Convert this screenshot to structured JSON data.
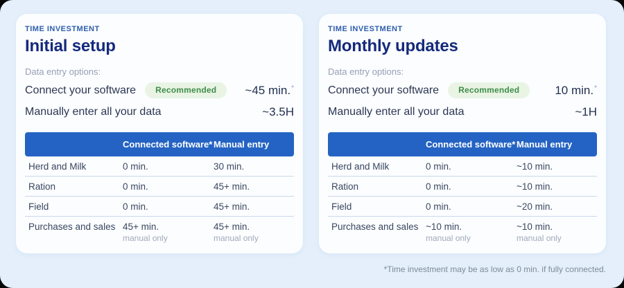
{
  "theme": {
    "page_bg": "#e4effb",
    "card_bg": "#fbfdff",
    "accent_blue": "#2463c3",
    "title_navy": "#15297b",
    "eyebrow_blue": "#2f5dab",
    "badge_green_bg": "#e9f4e4",
    "badge_green_text": "#3f8c4a"
  },
  "footnote": "*Time investment may be as low as 0 min. if fully connected.",
  "cards": [
    {
      "eyebrow": "TIME INVESTMENT",
      "title": "Initial setup",
      "options_label": "Data entry options:",
      "options": [
        {
          "label": "Connect your software",
          "badge": "Recommended",
          "value": "~45 min.",
          "value_suffix": "*"
        },
        {
          "label": "Manually enter all your data",
          "value": "~3.5H"
        }
      ],
      "table": {
        "headers": [
          "",
          "Connected software*",
          "Manual entry"
        ],
        "rows": [
          {
            "label": "Herd and Milk",
            "connected": "0 min.",
            "manual": "30 min."
          },
          {
            "label": "Ration",
            "connected": "0 min.",
            "manual": "45+ min."
          },
          {
            "label": "Field",
            "connected": "0 min.",
            "manual": "45+ min."
          },
          {
            "label": "Purchases and sales",
            "connected": "45+ min.",
            "connected_note": "manual only",
            "manual": "45+ min.",
            "manual_note": "manual only"
          }
        ]
      }
    },
    {
      "eyebrow": "TIME INVESTMENT",
      "title": "Monthly updates",
      "options_label": "Data entry options:",
      "options": [
        {
          "label": "Connect your software",
          "badge": "Recommended",
          "value": "10 min.",
          "value_suffix": "*"
        },
        {
          "label": "Manually enter all your data",
          "value": "~1H"
        }
      ],
      "table": {
        "headers": [
          "",
          "Connected software*",
          "Manual entry"
        ],
        "rows": [
          {
            "label": "Herd and Milk",
            "connected": "0 min.",
            "manual": "~10 min."
          },
          {
            "label": "Ration",
            "connected": "0 min.",
            "manual": "~10 min."
          },
          {
            "label": "Field",
            "connected": "0 min.",
            "manual": "~20 min."
          },
          {
            "label": "Purchases and sales",
            "connected": "~10 min.",
            "connected_note": "manual only",
            "manual": "~10 min.",
            "manual_note": "manual only"
          }
        ]
      }
    }
  ]
}
